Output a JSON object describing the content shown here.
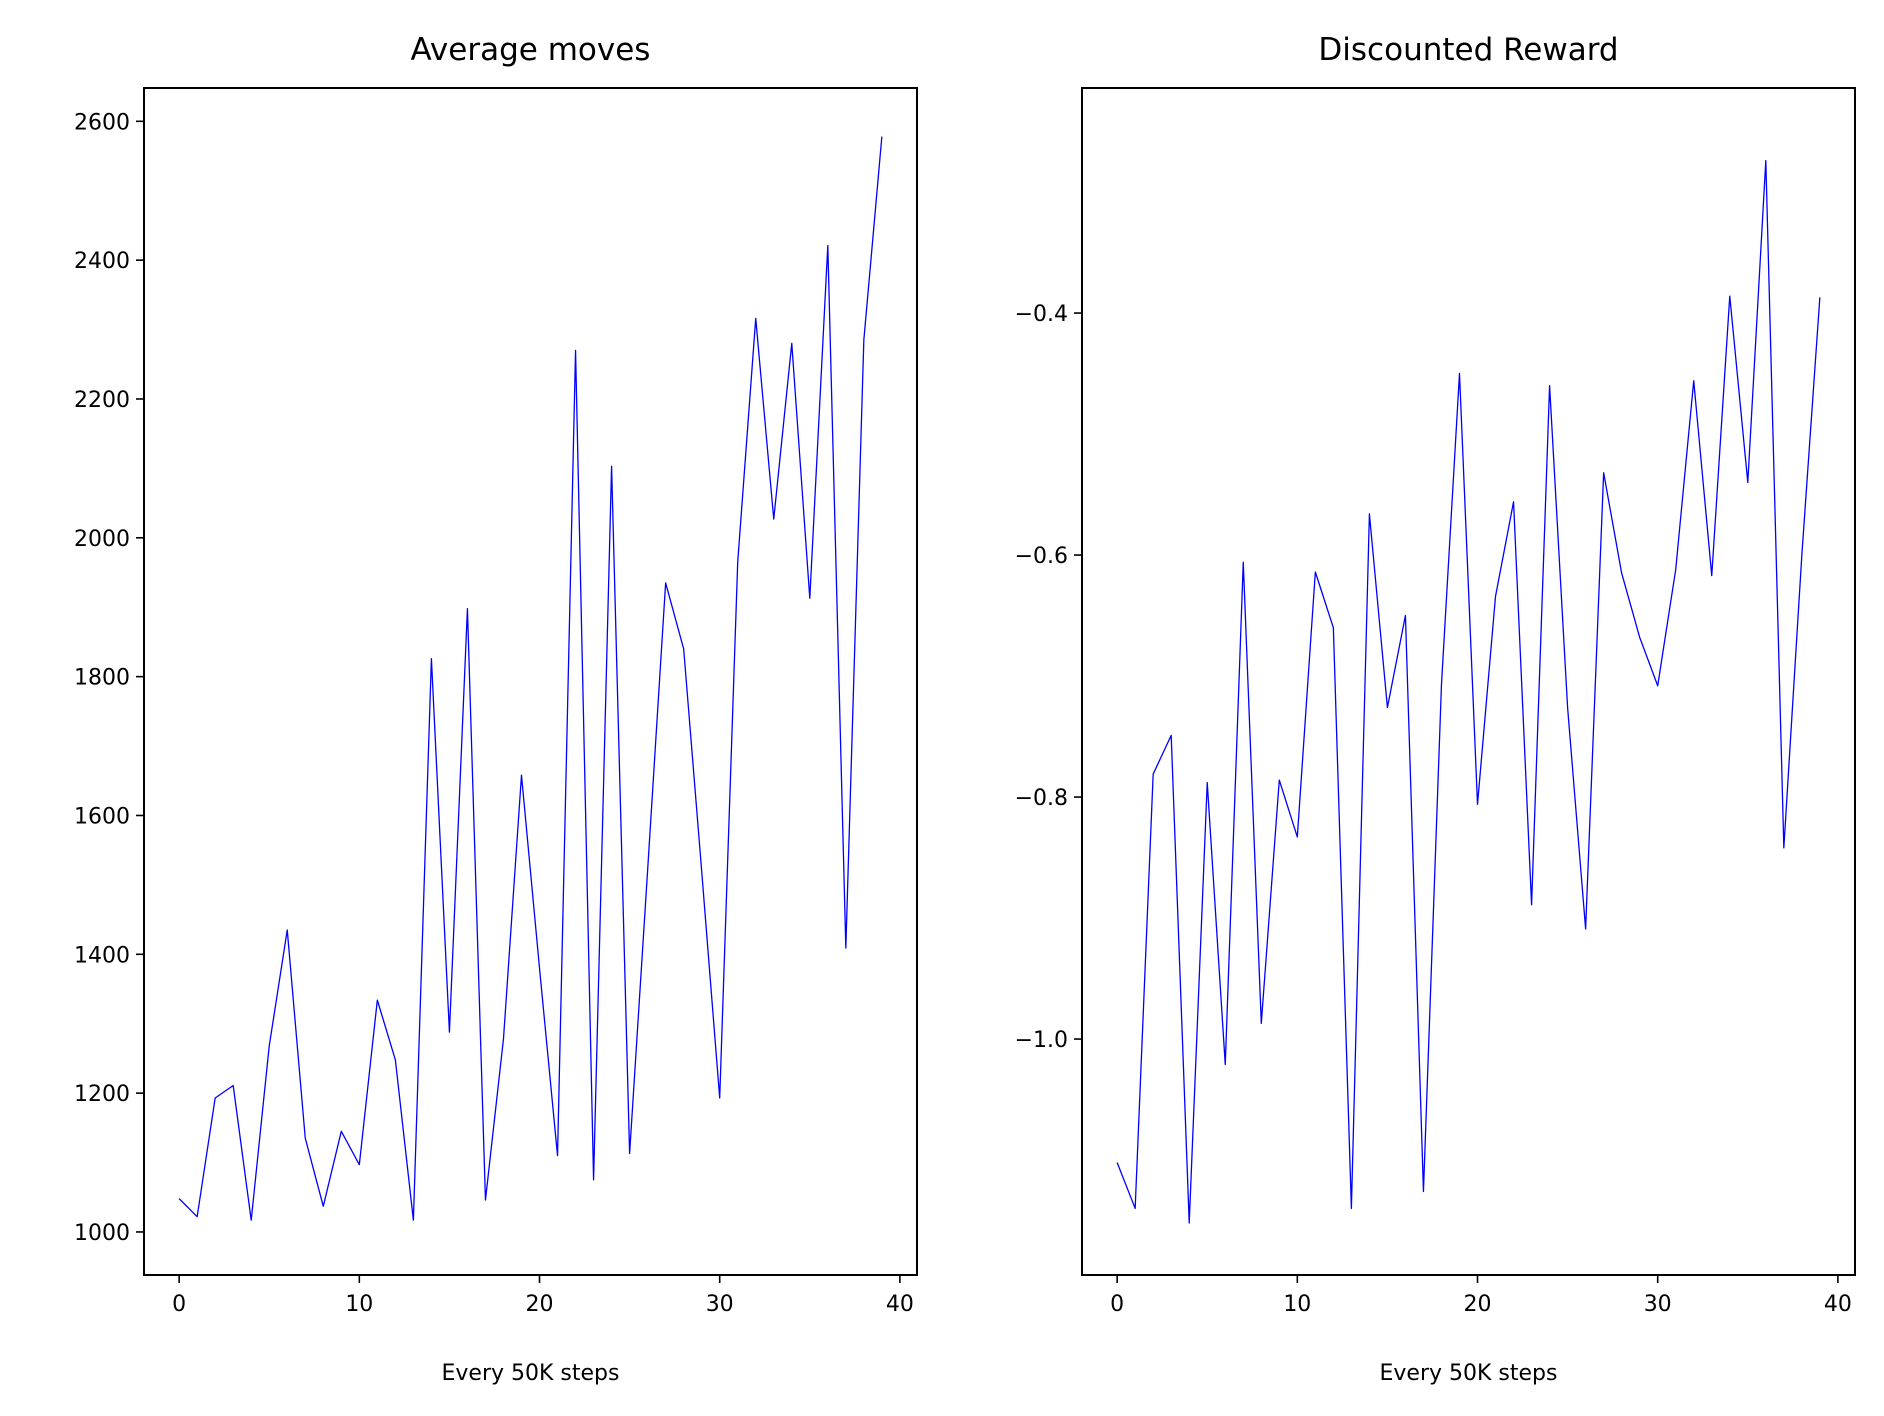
{
  "chart_data": [
    {
      "type": "line",
      "title": "Average moves",
      "xlabel": "Every 50K steps",
      "ylabel": "",
      "xlim": [
        -1.95,
        40.95
      ],
      "ylim": [
        938,
        2648
      ],
      "xticks": [
        0,
        10,
        20,
        30,
        40
      ],
      "xtick_labels": [
        "0",
        "10",
        "20",
        "30",
        "40"
      ],
      "yticks": [
        1000,
        1200,
        1400,
        1600,
        1800,
        2000,
        2200,
        2400,
        2600
      ],
      "ytick_labels": [
        "1000",
        "1200",
        "1400",
        "1600",
        "1800",
        "2000",
        "2200",
        "2400",
        "2600"
      ],
      "grid": false,
      "series": [
        {
          "color": "#0000ff",
          "x": [
            0,
            1,
            2,
            3,
            4,
            5,
            6,
            7,
            8,
            9,
            10,
            11,
            12,
            13,
            14,
            15,
            16,
            17,
            18,
            19,
            20,
            21,
            22,
            23,
            24,
            25,
            26,
            27,
            28,
            29,
            30,
            31,
            32,
            33,
            34,
            35,
            36,
            37,
            38,
            39
          ],
          "values": [
            1048,
            1022,
            1193,
            1211,
            1017,
            1268,
            1435,
            1135,
            1037,
            1145,
            1097,
            1334,
            1248,
            1017,
            1826,
            1288,
            1898,
            1046,
            1278,
            1658,
            1380,
            1110,
            2270,
            1075,
            2103,
            1113,
            1521,
            1935,
            1840,
            1520,
            1193,
            1965,
            2316,
            2027,
            2280,
            1913,
            2421,
            1409,
            2285,
            2578
          ]
        }
      ]
    },
    {
      "type": "line",
      "title": "Discounted Reward",
      "xlabel": "Every 50K steps",
      "ylabel": "",
      "xlim": [
        -1.95,
        40.95
      ],
      "ylim": [
        -1.195,
        -0.214
      ],
      "xticks": [
        0,
        10,
        20,
        30,
        40
      ],
      "xtick_labels": [
        "0",
        "10",
        "20",
        "30",
        "40"
      ],
      "yticks": [
        -1.0,
        -0.8,
        -0.6,
        -0.4
      ],
      "ytick_labels": [
        "−1.0",
        "−0.8",
        "−0.6",
        "−0.4"
      ],
      "grid": false,
      "series": [
        {
          "color": "#0000ff",
          "x": [
            0,
            1,
            2,
            3,
            4,
            5,
            6,
            7,
            8,
            9,
            10,
            11,
            12,
            13,
            14,
            15,
            16,
            17,
            18,
            19,
            20,
            21,
            22,
            23,
            24,
            25,
            26,
            27,
            28,
            29,
            30,
            31,
            32,
            33,
            34,
            35,
            36,
            37,
            38,
            39
          ],
          "values": [
            -1.102,
            -1.14,
            -0.781,
            -0.749,
            -1.152,
            -0.788,
            -1.021,
            -0.606,
            -0.987,
            -0.786,
            -0.833,
            -0.614,
            -0.66,
            -1.14,
            -0.566,
            -0.726,
            -0.65,
            -1.126,
            -0.707,
            -0.45,
            -0.806,
            -0.634,
            -0.556,
            -0.889,
            -0.46,
            -0.726,
            -0.909,
            -0.532,
            -0.615,
            -0.668,
            -0.708,
            -0.612,
            -0.456,
            -0.617,
            -0.386,
            -0.54,
            -0.274,
            -0.842,
            -0.6,
            -0.387
          ]
        }
      ]
    }
  ]
}
